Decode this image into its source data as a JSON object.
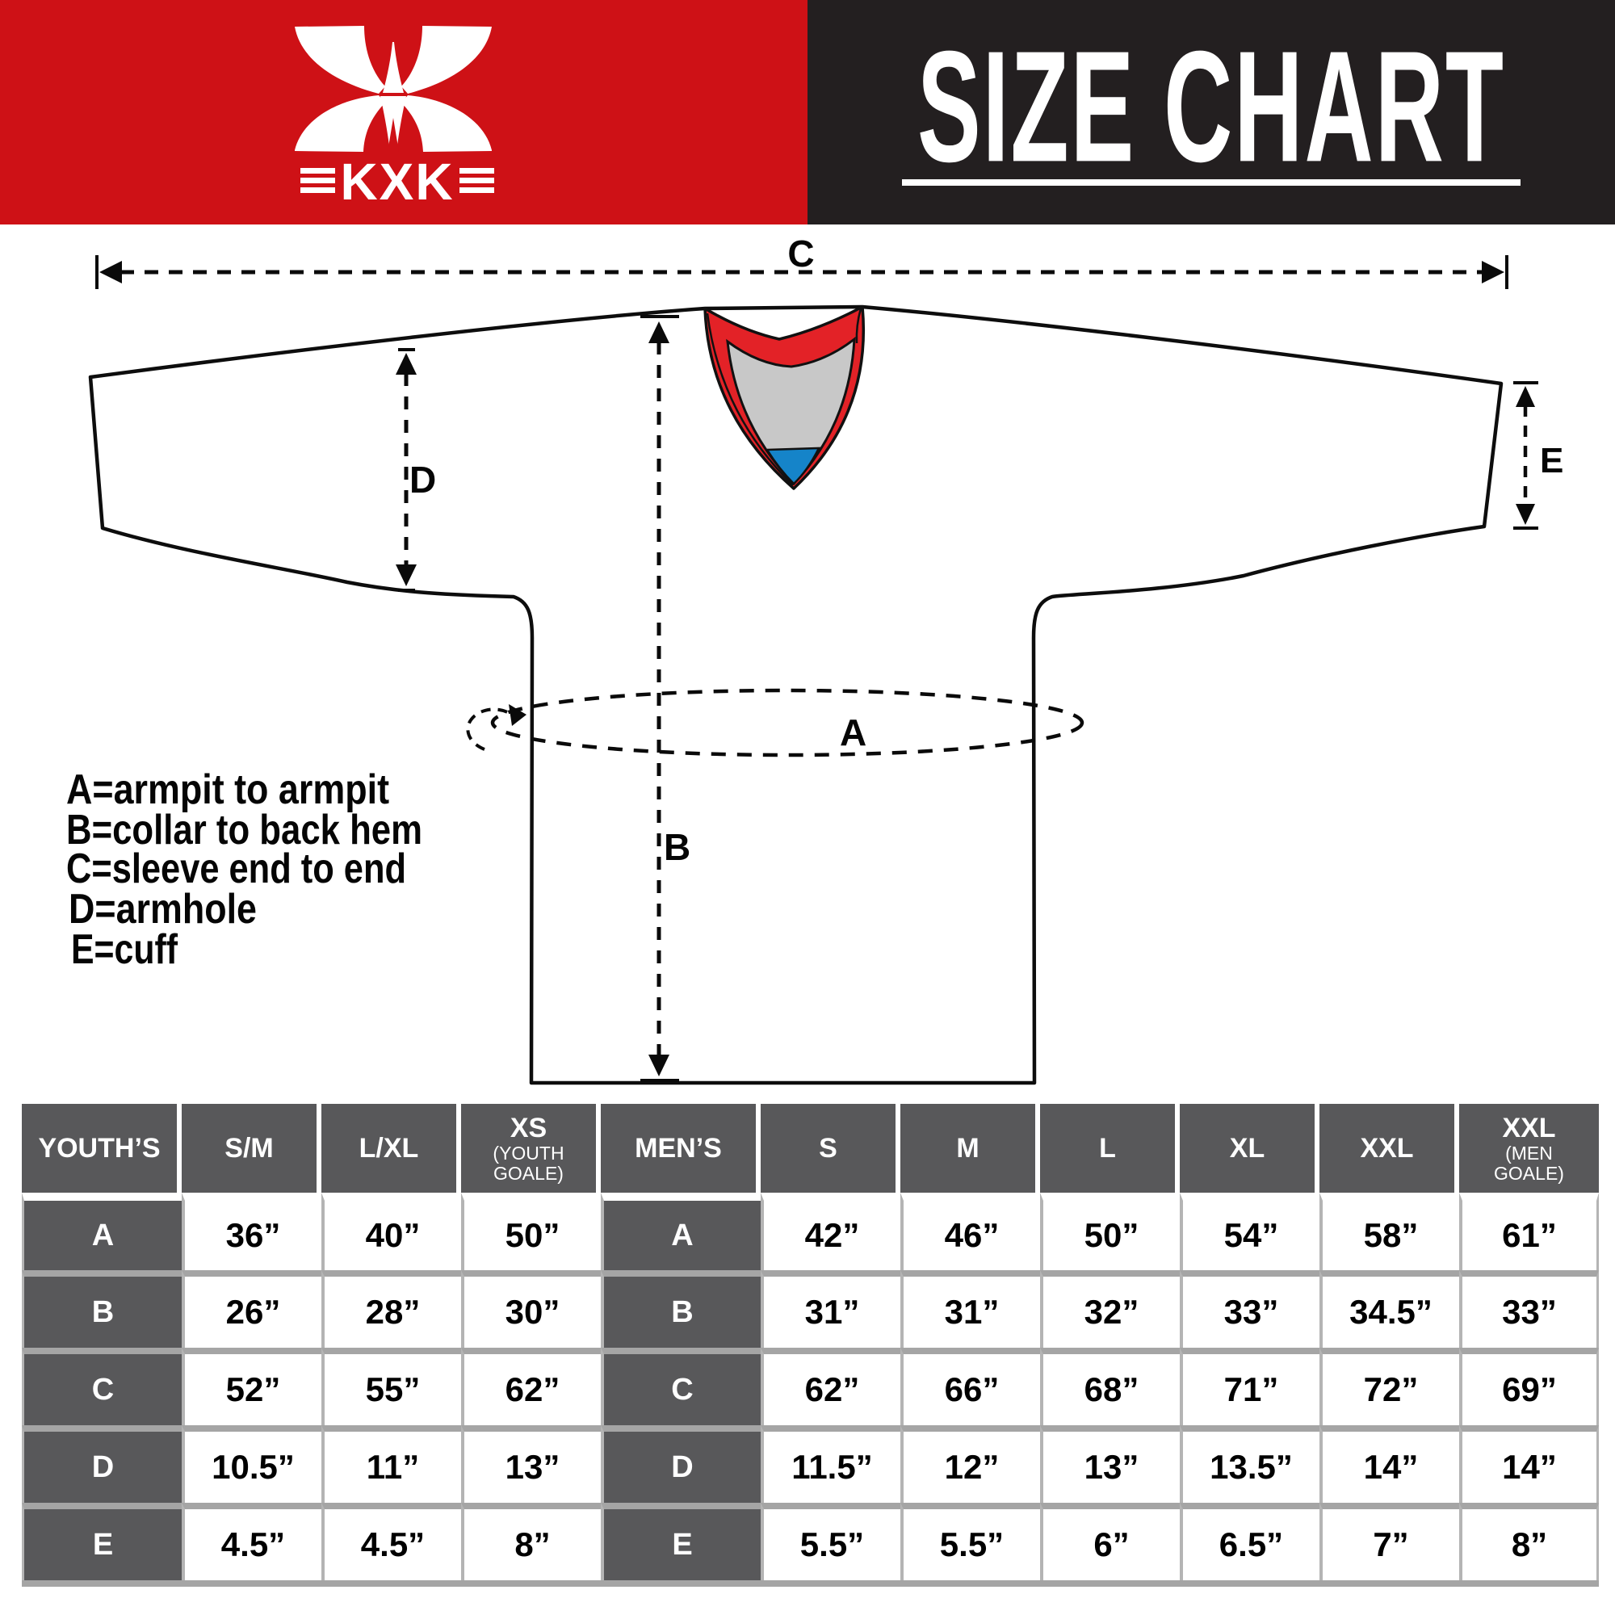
{
  "banner": {
    "brand": "KXK",
    "title": "SIZE CHART",
    "colors": {
      "red": "#ce1116",
      "black": "#231f20"
    }
  },
  "diagram": {
    "measure_labels": {
      "a": "A",
      "b": "B",
      "c": "C",
      "d": "D",
      "e": "E"
    },
    "legend": [
      "A=armpit to armpit",
      "B=collar to back hem",
      "C=sleeve end to end",
      "D=armhole",
      "E=cuff"
    ],
    "collar_colors": {
      "red": "#e32227",
      "gray": "#c8c8c8",
      "blue": "#1584c9"
    }
  },
  "table": {
    "header": [
      {
        "label": "YOUTH’S",
        "note": ""
      },
      {
        "label": "S/M",
        "note": ""
      },
      {
        "label": "L/XL",
        "note": ""
      },
      {
        "label": "XS",
        "note": "(YOUTH GOALE)"
      },
      {
        "label": "MEN’S",
        "note": ""
      },
      {
        "label": "S",
        "note": ""
      },
      {
        "label": "M",
        "note": ""
      },
      {
        "label": "L",
        "note": ""
      },
      {
        "label": "XL",
        "note": ""
      },
      {
        "label": "XXL",
        "note": ""
      },
      {
        "label": "XXL",
        "note": "(MEN GOALE)"
      }
    ],
    "rows": [
      {
        "label": "A",
        "youth": [
          "36”",
          "40”",
          "50”"
        ],
        "men": [
          "42”",
          "46”",
          "50”",
          "54”",
          "58”",
          "61”"
        ]
      },
      {
        "label": "B",
        "youth": [
          "26”",
          "28”",
          "30”"
        ],
        "men": [
          "31”",
          "31”",
          "32”",
          "33”",
          "34.5”",
          "33”"
        ]
      },
      {
        "label": "C",
        "youth": [
          "52”",
          "55”",
          "62”"
        ],
        "men": [
          "62”",
          "66”",
          "68”",
          "71”",
          "72”",
          "69”"
        ]
      },
      {
        "label": "D",
        "youth": [
          "10.5”",
          "11”",
          "13”"
        ],
        "men": [
          "11.5”",
          "12”",
          "13”",
          "13.5”",
          "14”",
          "14”"
        ]
      },
      {
        "label": "E",
        "youth": [
          "4.5”",
          "4.5”",
          "8”"
        ],
        "men": [
          "5.5”",
          "5.5”",
          "6”",
          "6.5”",
          "7”",
          "8”"
        ]
      }
    ]
  },
  "chart_data": {
    "type": "table",
    "title": "SIZE CHART",
    "measurement_key": {
      "A": "armpit to armpit",
      "B": "collar to back hem",
      "C": "sleeve end to end",
      "D": "armhole",
      "E": "cuff"
    },
    "youth_sizes": {
      "columns": [
        "S/M",
        "L/XL",
        "XS (YOUTH GOALE)"
      ],
      "A_inches": [
        36,
        40,
        50
      ],
      "B_inches": [
        26,
        28,
        30
      ],
      "C_inches": [
        52,
        55,
        62
      ],
      "D_inches": [
        10.5,
        11,
        13
      ],
      "E_inches": [
        4.5,
        4.5,
        8
      ]
    },
    "men_sizes": {
      "columns": [
        "S",
        "M",
        "L",
        "XL",
        "XXL",
        "XXL (MEN GOALE)"
      ],
      "A_inches": [
        42,
        46,
        50,
        54,
        58,
        61
      ],
      "B_inches": [
        31,
        31,
        32,
        33,
        34.5,
        33
      ],
      "C_inches": [
        62,
        66,
        68,
        71,
        72,
        69
      ],
      "D_inches": [
        11.5,
        12,
        13,
        13.5,
        14,
        14
      ],
      "E_inches": [
        5.5,
        5.5,
        6,
        6.5,
        7,
        8
      ]
    }
  }
}
